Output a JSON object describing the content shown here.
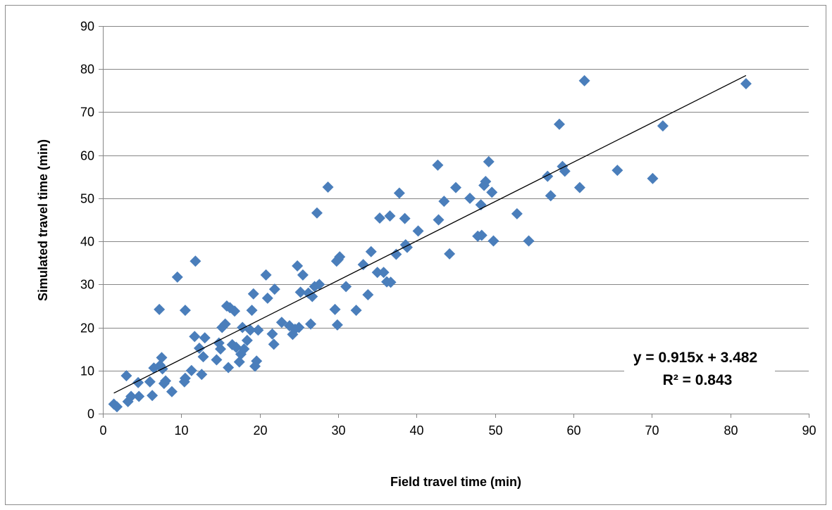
{
  "chart_data": {
    "type": "scatter",
    "title": "",
    "xlabel": "Field travel time (min)",
    "ylabel": "Simulated travel time (min)",
    "xlim": [
      0,
      90
    ],
    "ylim": [
      0,
      90
    ],
    "x_ticks": [
      "0",
      "10",
      "20",
      "30",
      "40",
      "50",
      "60",
      "70",
      "80",
      "90"
    ],
    "y_ticks": [
      "0",
      "10",
      "20",
      "30",
      "40",
      "50",
      "60",
      "70",
      "80",
      "90"
    ],
    "grid": "horizontal",
    "legend": "none",
    "marker": "diamond",
    "colors": {
      "marker": "#4a7ebb",
      "trendline": "#000000",
      "grid": "#868686"
    },
    "trendline": {
      "slope": 0.915,
      "intercept": 3.482,
      "x_range": [
        1.4,
        82
      ]
    },
    "annotations": {
      "equation": "y = 0.915x + 3.482",
      "r_squared": "R² = 0.843"
    },
    "points": [
      [
        1.4,
        2.2
      ],
      [
        1.8,
        1.6
      ],
      [
        3.0,
        8.8
      ],
      [
        3.2,
        2.8
      ],
      [
        3.6,
        4.0
      ],
      [
        4.5,
        7.2
      ],
      [
        4.6,
        4.0
      ],
      [
        6.0,
        7.4
      ],
      [
        6.3,
        4.2
      ],
      [
        6.5,
        10.6
      ],
      [
        7.2,
        24.2
      ],
      [
        7.3,
        11.2
      ],
      [
        7.5,
        13.0
      ],
      [
        7.6,
        10.4
      ],
      [
        7.8,
        7.0
      ],
      [
        8.0,
        7.6
      ],
      [
        8.8,
        5.1
      ],
      [
        9.5,
        31.7
      ],
      [
        10.4,
        7.4
      ],
      [
        10.5,
        24.0
      ],
      [
        10.5,
        8.2
      ],
      [
        11.3,
        10.0
      ],
      [
        11.7,
        17.9
      ],
      [
        11.8,
        35.4
      ],
      [
        12.3,
        15.2
      ],
      [
        12.6,
        9.1
      ],
      [
        12.8,
        13.2
      ],
      [
        13.0,
        17.6
      ],
      [
        14.5,
        12.5
      ],
      [
        14.8,
        16.4
      ],
      [
        15.0,
        15.0
      ],
      [
        15.2,
        20.0
      ],
      [
        15.6,
        20.8
      ],
      [
        15.8,
        25.0
      ],
      [
        16.0,
        10.7
      ],
      [
        16.2,
        24.6
      ],
      [
        16.5,
        16.0
      ],
      [
        16.8,
        23.8
      ],
      [
        17.0,
        15.4
      ],
      [
        17.4,
        12.0
      ],
      [
        17.6,
        13.8
      ],
      [
        17.8,
        20.0
      ],
      [
        18.0,
        15.0
      ],
      [
        18.4,
        17.0
      ],
      [
        18.8,
        19.4
      ],
      [
        19.0,
        24.0
      ],
      [
        19.2,
        27.8
      ],
      [
        19.4,
        11.0
      ],
      [
        19.6,
        12.2
      ],
      [
        19.8,
        19.4
      ],
      [
        20.8,
        32.2
      ],
      [
        21.0,
        26.8
      ],
      [
        21.6,
        18.5
      ],
      [
        21.8,
        16.1
      ],
      [
        21.9,
        28.9
      ],
      [
        22.8,
        21.2
      ],
      [
        23.8,
        20.4
      ],
      [
        24.2,
        18.4
      ],
      [
        24.5,
        19.6
      ],
      [
        24.8,
        34.3
      ],
      [
        25.0,
        20.0
      ],
      [
        25.2,
        28.2
      ],
      [
        25.5,
        32.2
      ],
      [
        26.2,
        28.0
      ],
      [
        26.5,
        20.8
      ],
      [
        26.7,
        27.2
      ],
      [
        27.0,
        29.5
      ],
      [
        27.3,
        46.6
      ],
      [
        27.6,
        30.0
      ],
      [
        28.7,
        52.6
      ],
      [
        29.6,
        24.2
      ],
      [
        29.8,
        35.4
      ],
      [
        29.9,
        20.6
      ],
      [
        30.0,
        35.8
      ],
      [
        30.2,
        36.4
      ],
      [
        31.0,
        29.5
      ],
      [
        32.3,
        24.0
      ],
      [
        33.2,
        34.6
      ],
      [
        33.8,
        27.6
      ],
      [
        34.2,
        37.6
      ],
      [
        35.0,
        32.8
      ],
      [
        35.3,
        45.4
      ],
      [
        35.8,
        32.8
      ],
      [
        36.2,
        30.6
      ],
      [
        36.6,
        45.9
      ],
      [
        36.7,
        30.5
      ],
      [
        37.4,
        37.0
      ],
      [
        37.8,
        51.2
      ],
      [
        38.5,
        45.3
      ],
      [
        38.6,
        39.2
      ],
      [
        38.8,
        38.6
      ],
      [
        40.2,
        42.4
      ],
      [
        42.7,
        57.7
      ],
      [
        42.8,
        45.0
      ],
      [
        43.5,
        49.3
      ],
      [
        44.2,
        37.1
      ],
      [
        45.0,
        52.5
      ],
      [
        46.8,
        50.0
      ],
      [
        47.8,
        41.2
      ],
      [
        48.2,
        48.5
      ],
      [
        48.3,
        41.4
      ],
      [
        48.6,
        53.0
      ],
      [
        48.8,
        53.9
      ],
      [
        49.2,
        58.5
      ],
      [
        49.6,
        51.4
      ],
      [
        49.8,
        40.1
      ],
      [
        52.8,
        46.4
      ],
      [
        54.3,
        40.1
      ],
      [
        56.7,
        55.1
      ],
      [
        57.1,
        50.6
      ],
      [
        58.2,
        67.2
      ],
      [
        58.6,
        57.4
      ],
      [
        58.9,
        56.3
      ],
      [
        60.8,
        52.5
      ],
      [
        61.4,
        77.3
      ],
      [
        65.6,
        56.5
      ],
      [
        70.1,
        54.6
      ],
      [
        71.4,
        66.8
      ],
      [
        82.0,
        76.6
      ]
    ]
  }
}
